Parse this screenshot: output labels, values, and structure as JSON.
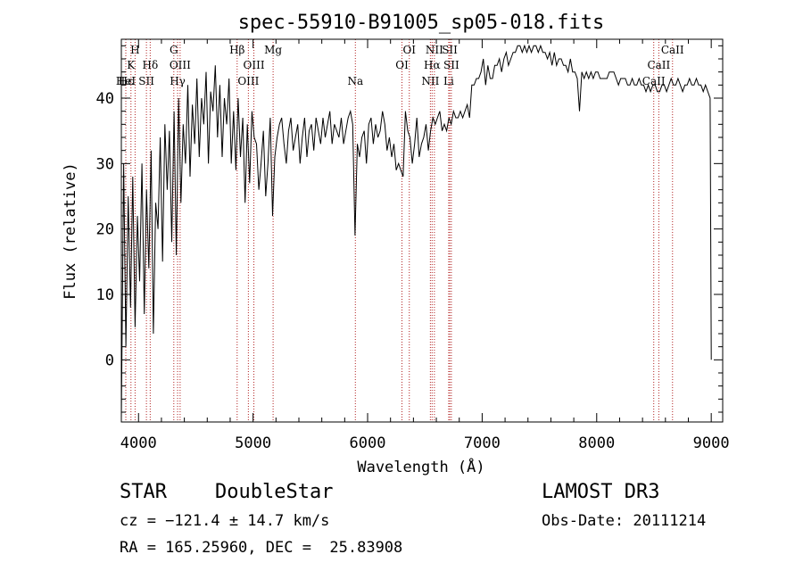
{
  "chart_data": {
    "type": "line",
    "title": "spec-55910-B91005_sp05-018.fits",
    "xlabel": "Wavelength (Å)",
    "ylabel": "Flux (relative)",
    "xlim": [
      3850,
      9100
    ],
    "ylim": [
      -9.5,
      49
    ],
    "xticks": [
      4000,
      5000,
      6000,
      7000,
      8000,
      9000
    ],
    "yticks": [
      0,
      10,
      20,
      30,
      40
    ],
    "xminor_step": 200,
    "yminor_step": 2,
    "line_color": "#000000",
    "marker_color": "#b22222",
    "series": [
      {
        "x": [
          3850,
          3870,
          3890,
          3910,
          3930,
          3950,
          3970,
          3990,
          4010,
          4030,
          4050,
          4070,
          4090,
          4110,
          4130,
          4150,
          4170,
          4190,
          4210,
          4230,
          4250,
          4270,
          4290,
          4310,
          4330,
          4350,
          4370,
          4390,
          4410,
          4430,
          4450,
          4470,
          4490,
          4510,
          4530,
          4550,
          4570,
          4590,
          4610,
          4630,
          4650,
          4670,
          4690,
          4710,
          4730,
          4750,
          4770,
          4790,
          4810,
          4830,
          4850,
          4870,
          4890,
          4910,
          4930,
          4950,
          4970,
          4990,
          5010,
          5030,
          5050,
          5070,
          5090,
          5110,
          5130,
          5150,
          5170,
          5190,
          5210,
          5230,
          5250,
          5270,
          5290,
          5310,
          5330,
          5350,
          5370,
          5390,
          5410,
          5430,
          5450,
          5470,
          5490,
          5510,
          5530,
          5550,
          5570,
          5590,
          5610,
          5630,
          5650,
          5670,
          5690,
          5710,
          5730,
          5750,
          5770,
          5790,
          5810,
          5830,
          5850,
          5870,
          5890,
          5910,
          5930,
          5950,
          5970,
          5990,
          6010,
          6030,
          6050,
          6070,
          6090,
          6110,
          6130,
          6150,
          6170,
          6190,
          6210,
          6230,
          6250,
          6270,
          6290,
          6310,
          6330,
          6350,
          6370,
          6390,
          6410,
          6430,
          6450,
          6470,
          6490,
          6510,
          6530,
          6550,
          6570,
          6590,
          6610,
          6630,
          6650,
          6670,
          6690,
          6710,
          6730,
          6750,
          6770,
          6790,
          6810,
          6830,
          6850,
          6870,
          6890,
          6910,
          6930,
          6950,
          6970,
          6990,
          7010,
          7030,
          7050,
          7070,
          7090,
          7110,
          7130,
          7150,
          7170,
          7190,
          7210,
          7230,
          7250,
          7270,
          7290,
          7310,
          7330,
          7350,
          7370,
          7390,
          7410,
          7430,
          7450,
          7470,
          7490,
          7510,
          7530,
          7550,
          7570,
          7590,
          7610,
          7630,
          7650,
          7670,
          7690,
          7710,
          7730,
          7750,
          7770,
          7790,
          7810,
          7830,
          7850,
          7870,
          7890,
          7910,
          7930,
          7950,
          7970,
          7990,
          8010,
          8030,
          8050,
          8070,
          8090,
          8110,
          8130,
          8150,
          8170,
          8190,
          8210,
          8230,
          8250,
          8270,
          8290,
          8310,
          8330,
          8350,
          8370,
          8390,
          8410,
          8430,
          8450,
          8470,
          8490,
          8510,
          8530,
          8550,
          8570,
          8590,
          8610,
          8630,
          8650,
          8670,
          8690,
          8710,
          8730,
          8750,
          8770,
          8790,
          8810,
          8830,
          8850,
          8870,
          8890,
          8910,
          8930,
          8950,
          8970,
          8990,
          9000
        ],
        "y": [
          -9,
          30,
          2,
          25,
          8,
          28,
          5,
          22,
          12,
          30,
          7,
          26,
          14,
          32,
          4,
          24,
          20,
          34,
          15,
          36,
          26,
          35,
          18,
          38,
          16,
          40,
          24,
          36,
          30,
          42,
          28,
          39,
          33,
          43,
          31,
          40,
          36,
          44,
          30,
          41,
          38,
          45,
          34,
          42,
          31,
          40,
          36,
          43,
          30,
          38,
          29,
          40,
          31,
          37,
          24,
          36,
          27,
          38,
          34,
          33,
          26,
          30,
          35,
          25,
          30,
          37,
          22,
          31,
          34,
          36,
          37,
          33,
          30,
          35,
          37,
          32,
          34,
          36,
          30,
          34,
          37,
          31,
          35,
          36,
          32,
          37,
          35,
          33,
          37,
          34,
          36,
          38,
          33,
          36,
          35,
          34,
          37,
          33,
          35,
          37,
          38,
          36,
          19,
          33,
          31,
          34,
          35,
          30,
          36,
          37,
          33,
          36,
          34,
          35,
          38,
          36,
          32,
          34,
          31,
          33,
          29,
          30,
          29,
          28,
          38,
          35,
          34,
          30,
          33,
          37,
          31,
          33,
          34,
          36,
          32,
          35,
          37,
          36,
          37,
          38,
          35,
          36,
          35,
          37,
          36,
          38,
          37,
          37,
          38,
          37,
          38,
          39,
          37,
          42,
          42,
          43,
          43,
          44,
          46,
          42,
          45,
          43,
          43,
          45,
          45,
          46,
          44,
          46,
          47,
          45,
          46,
          47,
          47,
          48,
          48,
          47,
          48,
          47,
          48,
          47,
          48,
          48,
          47,
          48,
          47,
          47,
          46,
          47,
          45,
          47,
          45,
          46,
          46,
          45,
          45,
          44,
          46,
          44,
          44,
          43,
          38,
          44,
          43,
          44,
          43,
          44,
          43,
          44,
          44,
          43,
          43,
          43,
          43,
          44,
          44,
          44,
          43,
          42,
          43,
          43,
          43,
          42,
          42,
          43,
          42,
          42,
          43,
          42,
          42,
          41,
          42,
          41,
          42,
          42,
          41,
          41,
          42,
          42,
          41,
          42,
          43,
          42,
          42,
          43,
          42,
          41,
          42,
          42,
          43,
          42,
          42,
          43,
          42,
          42,
          41,
          42,
          41,
          40,
          0
        ]
      }
    ],
    "lines": [
      {
        "label": "H",
        "x": 3970,
        "row": 0
      },
      {
        "label": "K",
        "x": 3934,
        "row": 1
      },
      {
        "label": "Hε",
        "x": 3889,
        "row": 2
      },
      {
        "label": "HeI",
        "x": 3889,
        "row": 2
      },
      {
        "label": "SII",
        "x": 4069,
        "row": 2
      },
      {
        "label": "Hδ",
        "x": 4102,
        "row": 1
      },
      {
        "label": "G",
        "x": 4308,
        "row": 0
      },
      {
        "label": "OIII",
        "x": 4363,
        "row": 1
      },
      {
        "label": "Hγ",
        "x": 4341,
        "row": 2
      },
      {
        "label": "Hβ",
        "x": 4861,
        "row": 0
      },
      {
        "label": "OIII",
        "x": 5007,
        "row": 1
      },
      {
        "label": "OIII",
        "x": 4959,
        "row": 2
      },
      {
        "label": "Mg",
        "x": 5175,
        "row": 0
      },
      {
        "label": "Na",
        "x": 5893,
        "row": 2
      },
      {
        "label": "OI",
        "x": 6364,
        "row": 0
      },
      {
        "label": "OI",
        "x": 6300,
        "row": 1
      },
      {
        "label": "NII",
        "x": 6583,
        "row": 0
      },
      {
        "label": "SII",
        "x": 6717,
        "row": 0
      },
      {
        "label": "Hα",
        "x": 6563,
        "row": 1
      },
      {
        "label": "SII",
        "x": 6731,
        "row": 1
      },
      {
        "label": "NII",
        "x": 6548,
        "row": 2
      },
      {
        "label": "Li",
        "x": 6708,
        "row": 2
      },
      {
        "label": "CaII",
        "x": 8662,
        "row": 0
      },
      {
        "label": "CaII",
        "x": 8542,
        "row": 1
      },
      {
        "label": "CaII",
        "x": 8498,
        "row": 2
      }
    ]
  },
  "info": {
    "class": "STAR",
    "subclass": "DoubleStar",
    "survey": "LAMOST DR3",
    "cz": "cz = −121.4 ± 14.7 km/s",
    "obs_date": "Obs-Date: 20111214",
    "radec": "RA = 165.25960, DEC =  25.83908"
  }
}
